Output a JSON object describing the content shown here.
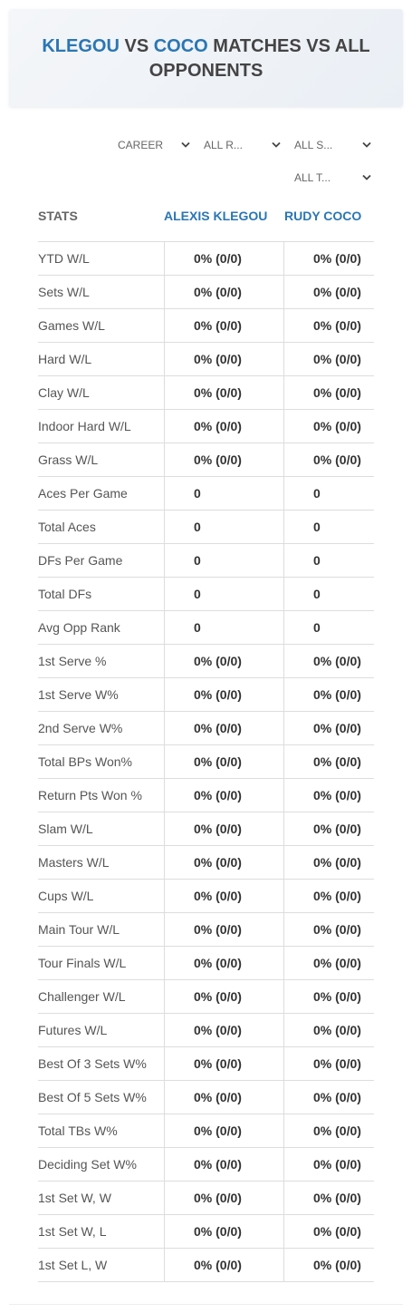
{
  "header": {
    "title": {
      "player1": "KLEGOU",
      "vs": "VS",
      "player2": "COCO",
      "rest": "MATCHES VS ALL OPPONENTS"
    }
  },
  "filters": [
    "CAREER",
    "ALL R...",
    "ALL S...",
    "ALL T..."
  ],
  "table": {
    "columns": [
      "STATS",
      "ALEXIS KLEGOU",
      "RUDY COCO"
    ],
    "rows": [
      [
        "YTD W/L",
        "0% (0/0)",
        "0% (0/0)"
      ],
      [
        "Sets W/L",
        "0% (0/0)",
        "0% (0/0)"
      ],
      [
        "Games W/L",
        "0% (0/0)",
        "0% (0/0)"
      ],
      [
        "Hard W/L",
        "0% (0/0)",
        "0% (0/0)"
      ],
      [
        "Clay W/L",
        "0% (0/0)",
        "0% (0/0)"
      ],
      [
        "Indoor Hard W/L",
        "0% (0/0)",
        "0% (0/0)"
      ],
      [
        "Grass W/L",
        "0% (0/0)",
        "0% (0/0)"
      ],
      [
        "Aces Per Game",
        "0",
        "0"
      ],
      [
        "Total Aces",
        "0",
        "0"
      ],
      [
        "DFs Per Game",
        "0",
        "0"
      ],
      [
        "Total DFs",
        "0",
        "0"
      ],
      [
        "Avg Opp Rank",
        "0",
        "0"
      ],
      [
        "1st Serve %",
        "0% (0/0)",
        "0% (0/0)"
      ],
      [
        "1st Serve W%",
        "0% (0/0)",
        "0% (0/0)"
      ],
      [
        "2nd Serve W%",
        "0% (0/0)",
        "0% (0/0)"
      ],
      [
        "Total BPs Won%",
        "0% (0/0)",
        "0% (0/0)"
      ],
      [
        "Return Pts Won %",
        "0% (0/0)",
        "0% (0/0)"
      ],
      [
        "Slam W/L",
        "0% (0/0)",
        "0% (0/0)"
      ],
      [
        "Masters W/L",
        "0% (0/0)",
        "0% (0/0)"
      ],
      [
        "Cups W/L",
        "0% (0/0)",
        "0% (0/0)"
      ],
      [
        "Main Tour W/L",
        "0% (0/0)",
        "0% (0/0)"
      ],
      [
        "Tour Finals W/L",
        "0% (0/0)",
        "0% (0/0)"
      ],
      [
        "Challenger W/L",
        "0% (0/0)",
        "0% (0/0)"
      ],
      [
        "Futures W/L",
        "0% (0/0)",
        "0% (0/0)"
      ],
      [
        "Best Of 3 Sets W%",
        "0% (0/0)",
        "0% (0/0)"
      ],
      [
        "Best Of 5 Sets W%",
        "0% (0/0)",
        "0% (0/0)"
      ],
      [
        "Total TBs W%",
        "0% (0/0)",
        "0% (0/0)"
      ],
      [
        "Deciding Set W%",
        "0% (0/0)",
        "0% (0/0)"
      ],
      [
        "1st Set W, W",
        "0% (0/0)",
        "0% (0/0)"
      ],
      [
        "1st Set W, L",
        "0% (0/0)",
        "0% (0/0)"
      ],
      [
        "1st Set L, W",
        "0% (0/0)",
        "0% (0/0)"
      ]
    ]
  }
}
